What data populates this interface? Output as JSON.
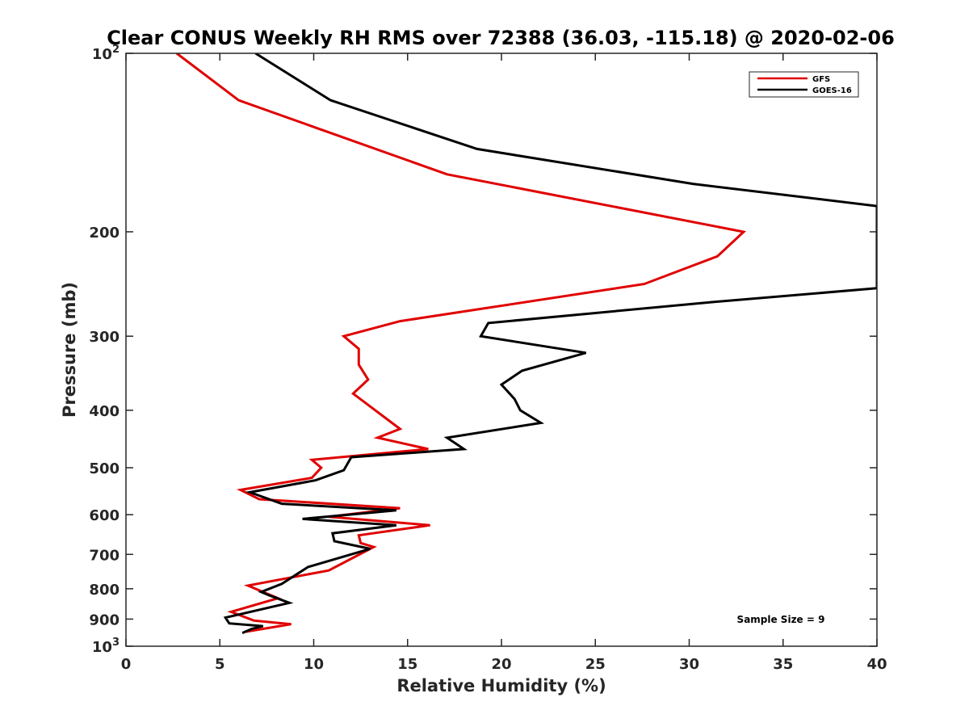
{
  "chart_data": {
    "type": "line",
    "title": "Clear CONUS Weekly RH RMS over 72388 (36.03, -115.18) @ 2020-02-06",
    "xlabel": "Relative Humidity (%)",
    "ylabel": "Pressure (mb)",
    "xlim": [
      0,
      40
    ],
    "ylim": [
      100,
      1000
    ],
    "y_scale": "log",
    "y_reversed": true,
    "x_ticks": [
      0,
      5,
      10,
      15,
      20,
      25,
      30,
      35,
      40
    ],
    "y_ticks": [
      {
        "value": 100,
        "base": "10",
        "exp": "2"
      },
      {
        "value": 200,
        "label": "200"
      },
      {
        "value": 300,
        "label": "300"
      },
      {
        "value": 400,
        "label": "400"
      },
      {
        "value": 500,
        "label": "500"
      },
      {
        "value": 600,
        "label": "600"
      },
      {
        "value": 700,
        "label": "700"
      },
      {
        "value": 800,
        "label": "800"
      },
      {
        "value": 900,
        "label": "900"
      },
      {
        "value": 1000,
        "base": "10",
        "exp": "3"
      }
    ],
    "grid": false,
    "legend_position": "top-right",
    "annotation": "Sample Size = 9",
    "series": [
      {
        "name": "GFS",
        "color": "#e00000",
        "points": [
          [
            2.7,
            100
          ],
          [
            6.0,
            120
          ],
          [
            17.1,
            160
          ],
          [
            32.9,
            200
          ],
          [
            31.5,
            220
          ],
          [
            27.6,
            245
          ],
          [
            14.6,
            283
          ],
          [
            11.6,
            300
          ],
          [
            12.4,
            315
          ],
          [
            12.4,
            335
          ],
          [
            12.9,
            355
          ],
          [
            12.1,
            375
          ],
          [
            14.6,
            430
          ],
          [
            13.4,
            445
          ],
          [
            16.1,
            465
          ],
          [
            9.9,
            485
          ],
          [
            10.4,
            500
          ],
          [
            9.9,
            520
          ],
          [
            6.1,
            545
          ],
          [
            7.1,
            565
          ],
          [
            14.6,
            585
          ],
          [
            10.8,
            605
          ],
          [
            16.2,
            625
          ],
          [
            12.4,
            650
          ],
          [
            12.5,
            670
          ],
          [
            13.2,
            680
          ],
          [
            10.8,
            745
          ],
          [
            6.5,
            790
          ],
          [
            7.1,
            805
          ],
          [
            8.1,
            830
          ],
          [
            5.6,
            875
          ],
          [
            6.8,
            905
          ],
          [
            8.8,
            918
          ],
          [
            6.4,
            945
          ]
        ]
      },
      {
        "name": "GOES-16",
        "color": "#000000",
        "points": [
          [
            6.9,
            100
          ],
          [
            10.9,
            120
          ],
          [
            18.7,
            145
          ],
          [
            30.2,
            166
          ],
          [
            40.0,
            181
          ],
          [
            40.0,
            249
          ],
          [
            31.1,
            263
          ],
          [
            19.3,
            285
          ],
          [
            18.9,
            300
          ],
          [
            24.5,
            320
          ],
          [
            21.1,
            343
          ],
          [
            20.0,
            362
          ],
          [
            20.7,
            383
          ],
          [
            21.0,
            400
          ],
          [
            22.1,
            420
          ],
          [
            17.1,
            445
          ],
          [
            18.0,
            465
          ],
          [
            12.0,
            480
          ],
          [
            11.6,
            505
          ],
          [
            10.1,
            525
          ],
          [
            6.6,
            550
          ],
          [
            8.3,
            575
          ],
          [
            14.4,
            590
          ],
          [
            9.4,
            610
          ],
          [
            14.4,
            625
          ],
          [
            11.0,
            645
          ],
          [
            11.1,
            665
          ],
          [
            13.0,
            685
          ],
          [
            9.7,
            735
          ],
          [
            8.3,
            785
          ],
          [
            7.2,
            810
          ],
          [
            7.6,
            820
          ],
          [
            8.7,
            845
          ],
          [
            5.3,
            895
          ],
          [
            5.5,
            915
          ],
          [
            7.3,
            925
          ],
          [
            6.7,
            935
          ],
          [
            6.2,
            950
          ]
        ]
      }
    ]
  }
}
